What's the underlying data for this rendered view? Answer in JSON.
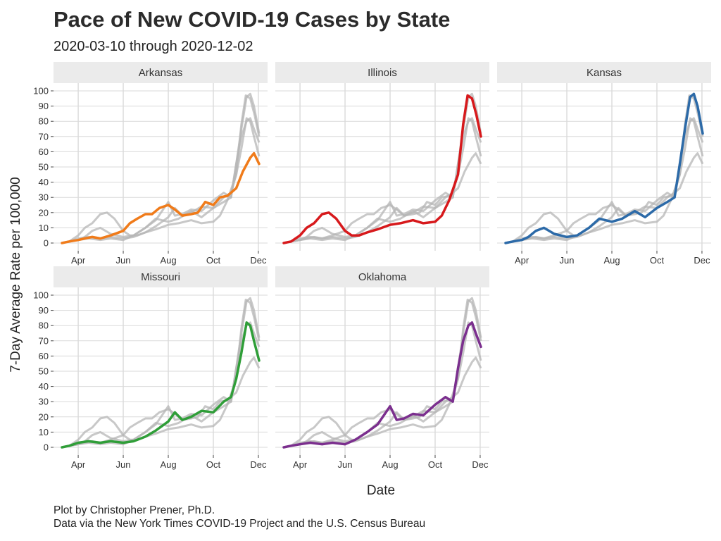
{
  "header": {
    "title": "Pace of New COVID-19 Cases by State",
    "subtitle": "2020-03-10 through 2020-12-02"
  },
  "caption": {
    "line1": "Plot by Christopher Prener, Ph.D.",
    "line2": "Data via the New York Times COVID-19 Project and the U.S. Census Bureau"
  },
  "chart_data": {
    "type": "line",
    "xlabel": "Date",
    "ylabel": "7-Day Average Rate per 100,000",
    "xlim": [
      "2020-03-10",
      "2020-12-02"
    ],
    "ylim": [
      0,
      100
    ],
    "x_ticks": [
      {
        "date": "2020-04-01",
        "label": "Apr"
      },
      {
        "date": "2020-06-01",
        "label": "Jun"
      },
      {
        "date": "2020-08-01",
        "label": "Aug"
      },
      {
        "date": "2020-10-01",
        "label": "Oct"
      },
      {
        "date": "2020-12-01",
        "label": "Dec"
      }
    ],
    "y_ticks": [
      0,
      10,
      20,
      30,
      40,
      50,
      60,
      70,
      80,
      90,
      100
    ],
    "grid": true,
    "background_color": "#888888",
    "series": [
      {
        "name": "Arkansas",
        "color": "#f07b1a",
        "x": [
          "2020-03-10",
          "2020-03-20",
          "2020-04-01",
          "2020-04-10",
          "2020-04-20",
          "2020-05-01",
          "2020-05-15",
          "2020-06-01",
          "2020-06-10",
          "2020-06-20",
          "2020-07-01",
          "2020-07-10",
          "2020-07-20",
          "2020-08-01",
          "2020-08-10",
          "2020-08-20",
          "2020-09-01",
          "2020-09-10",
          "2020-09-20",
          "2020-10-01",
          "2020-10-10",
          "2020-10-20",
          "2020-11-01",
          "2020-11-10",
          "2020-11-20",
          "2020-11-25",
          "2020-12-02"
        ],
        "values": [
          0,
          1,
          2,
          3,
          4,
          3,
          5,
          8,
          13,
          16,
          19,
          19,
          23,
          25,
          22,
          18,
          19,
          20,
          27,
          25,
          30,
          31,
          36,
          47,
          56,
          59,
          52
        ]
      },
      {
        "name": "Illinois",
        "color": "#d7191c",
        "x": [
          "2020-03-10",
          "2020-03-20",
          "2020-04-01",
          "2020-04-10",
          "2020-04-20",
          "2020-05-01",
          "2020-05-10",
          "2020-05-20",
          "2020-06-01",
          "2020-06-10",
          "2020-06-20",
          "2020-07-01",
          "2020-07-15",
          "2020-08-01",
          "2020-08-15",
          "2020-09-01",
          "2020-09-15",
          "2020-10-01",
          "2020-10-10",
          "2020-10-20",
          "2020-11-01",
          "2020-11-08",
          "2020-11-14",
          "2020-11-20",
          "2020-11-26",
          "2020-12-02"
        ],
        "values": [
          0,
          1,
          5,
          10,
          13,
          19,
          20,
          16,
          8,
          5,
          5,
          7,
          9,
          12,
          13,
          15,
          13,
          14,
          18,
          28,
          45,
          78,
          97,
          95,
          84,
          70
        ]
      },
      {
        "name": "Kansas",
        "color": "#2c6aa8",
        "x": [
          "2020-03-10",
          "2020-03-20",
          "2020-04-01",
          "2020-04-10",
          "2020-04-20",
          "2020-05-01",
          "2020-05-15",
          "2020-06-01",
          "2020-06-15",
          "2020-07-01",
          "2020-07-15",
          "2020-08-01",
          "2020-08-15",
          "2020-09-01",
          "2020-09-15",
          "2020-10-01",
          "2020-10-15",
          "2020-10-25",
          "2020-11-01",
          "2020-11-08",
          "2020-11-15",
          "2020-11-20",
          "2020-11-25",
          "2020-12-02"
        ],
        "values": [
          0,
          1,
          2,
          4,
          8,
          10,
          6,
          4,
          5,
          10,
          16,
          14,
          16,
          21,
          17,
          23,
          27,
          30,
          52,
          75,
          96,
          98,
          90,
          72
        ]
      },
      {
        "name": "Missouri",
        "color": "#2f9e38",
        "x": [
          "2020-03-10",
          "2020-03-20",
          "2020-04-01",
          "2020-04-15",
          "2020-05-01",
          "2020-05-15",
          "2020-06-01",
          "2020-06-15",
          "2020-07-01",
          "2020-07-15",
          "2020-08-01",
          "2020-08-10",
          "2020-08-20",
          "2020-09-01",
          "2020-09-15",
          "2020-10-01",
          "2020-10-15",
          "2020-10-25",
          "2020-11-01",
          "2020-11-08",
          "2020-11-15",
          "2020-11-20",
          "2020-11-25",
          "2020-12-02"
        ],
        "values": [
          0,
          1,
          3,
          4,
          3,
          4,
          3,
          4,
          7,
          11,
          17,
          23,
          18,
          20,
          24,
          23,
          30,
          33,
          45,
          62,
          82,
          80,
          70,
          57
        ]
      },
      {
        "name": "Oklahoma",
        "color": "#7b2f8e",
        "x": [
          "2020-03-10",
          "2020-03-20",
          "2020-04-01",
          "2020-04-15",
          "2020-05-01",
          "2020-05-15",
          "2020-06-01",
          "2020-06-15",
          "2020-07-01",
          "2020-07-15",
          "2020-08-01",
          "2020-08-10",
          "2020-08-20",
          "2020-09-01",
          "2020-09-15",
          "2020-10-01",
          "2020-10-15",
          "2020-10-25",
          "2020-11-01",
          "2020-11-08",
          "2020-11-15",
          "2020-11-20",
          "2020-11-25",
          "2020-12-02"
        ],
        "values": [
          0,
          1,
          2,
          3,
          2,
          3,
          2,
          5,
          10,
          15,
          27,
          18,
          19,
          22,
          21,
          28,
          33,
          30,
          52,
          70,
          80,
          82,
          75,
          66
        ]
      }
    ]
  }
}
